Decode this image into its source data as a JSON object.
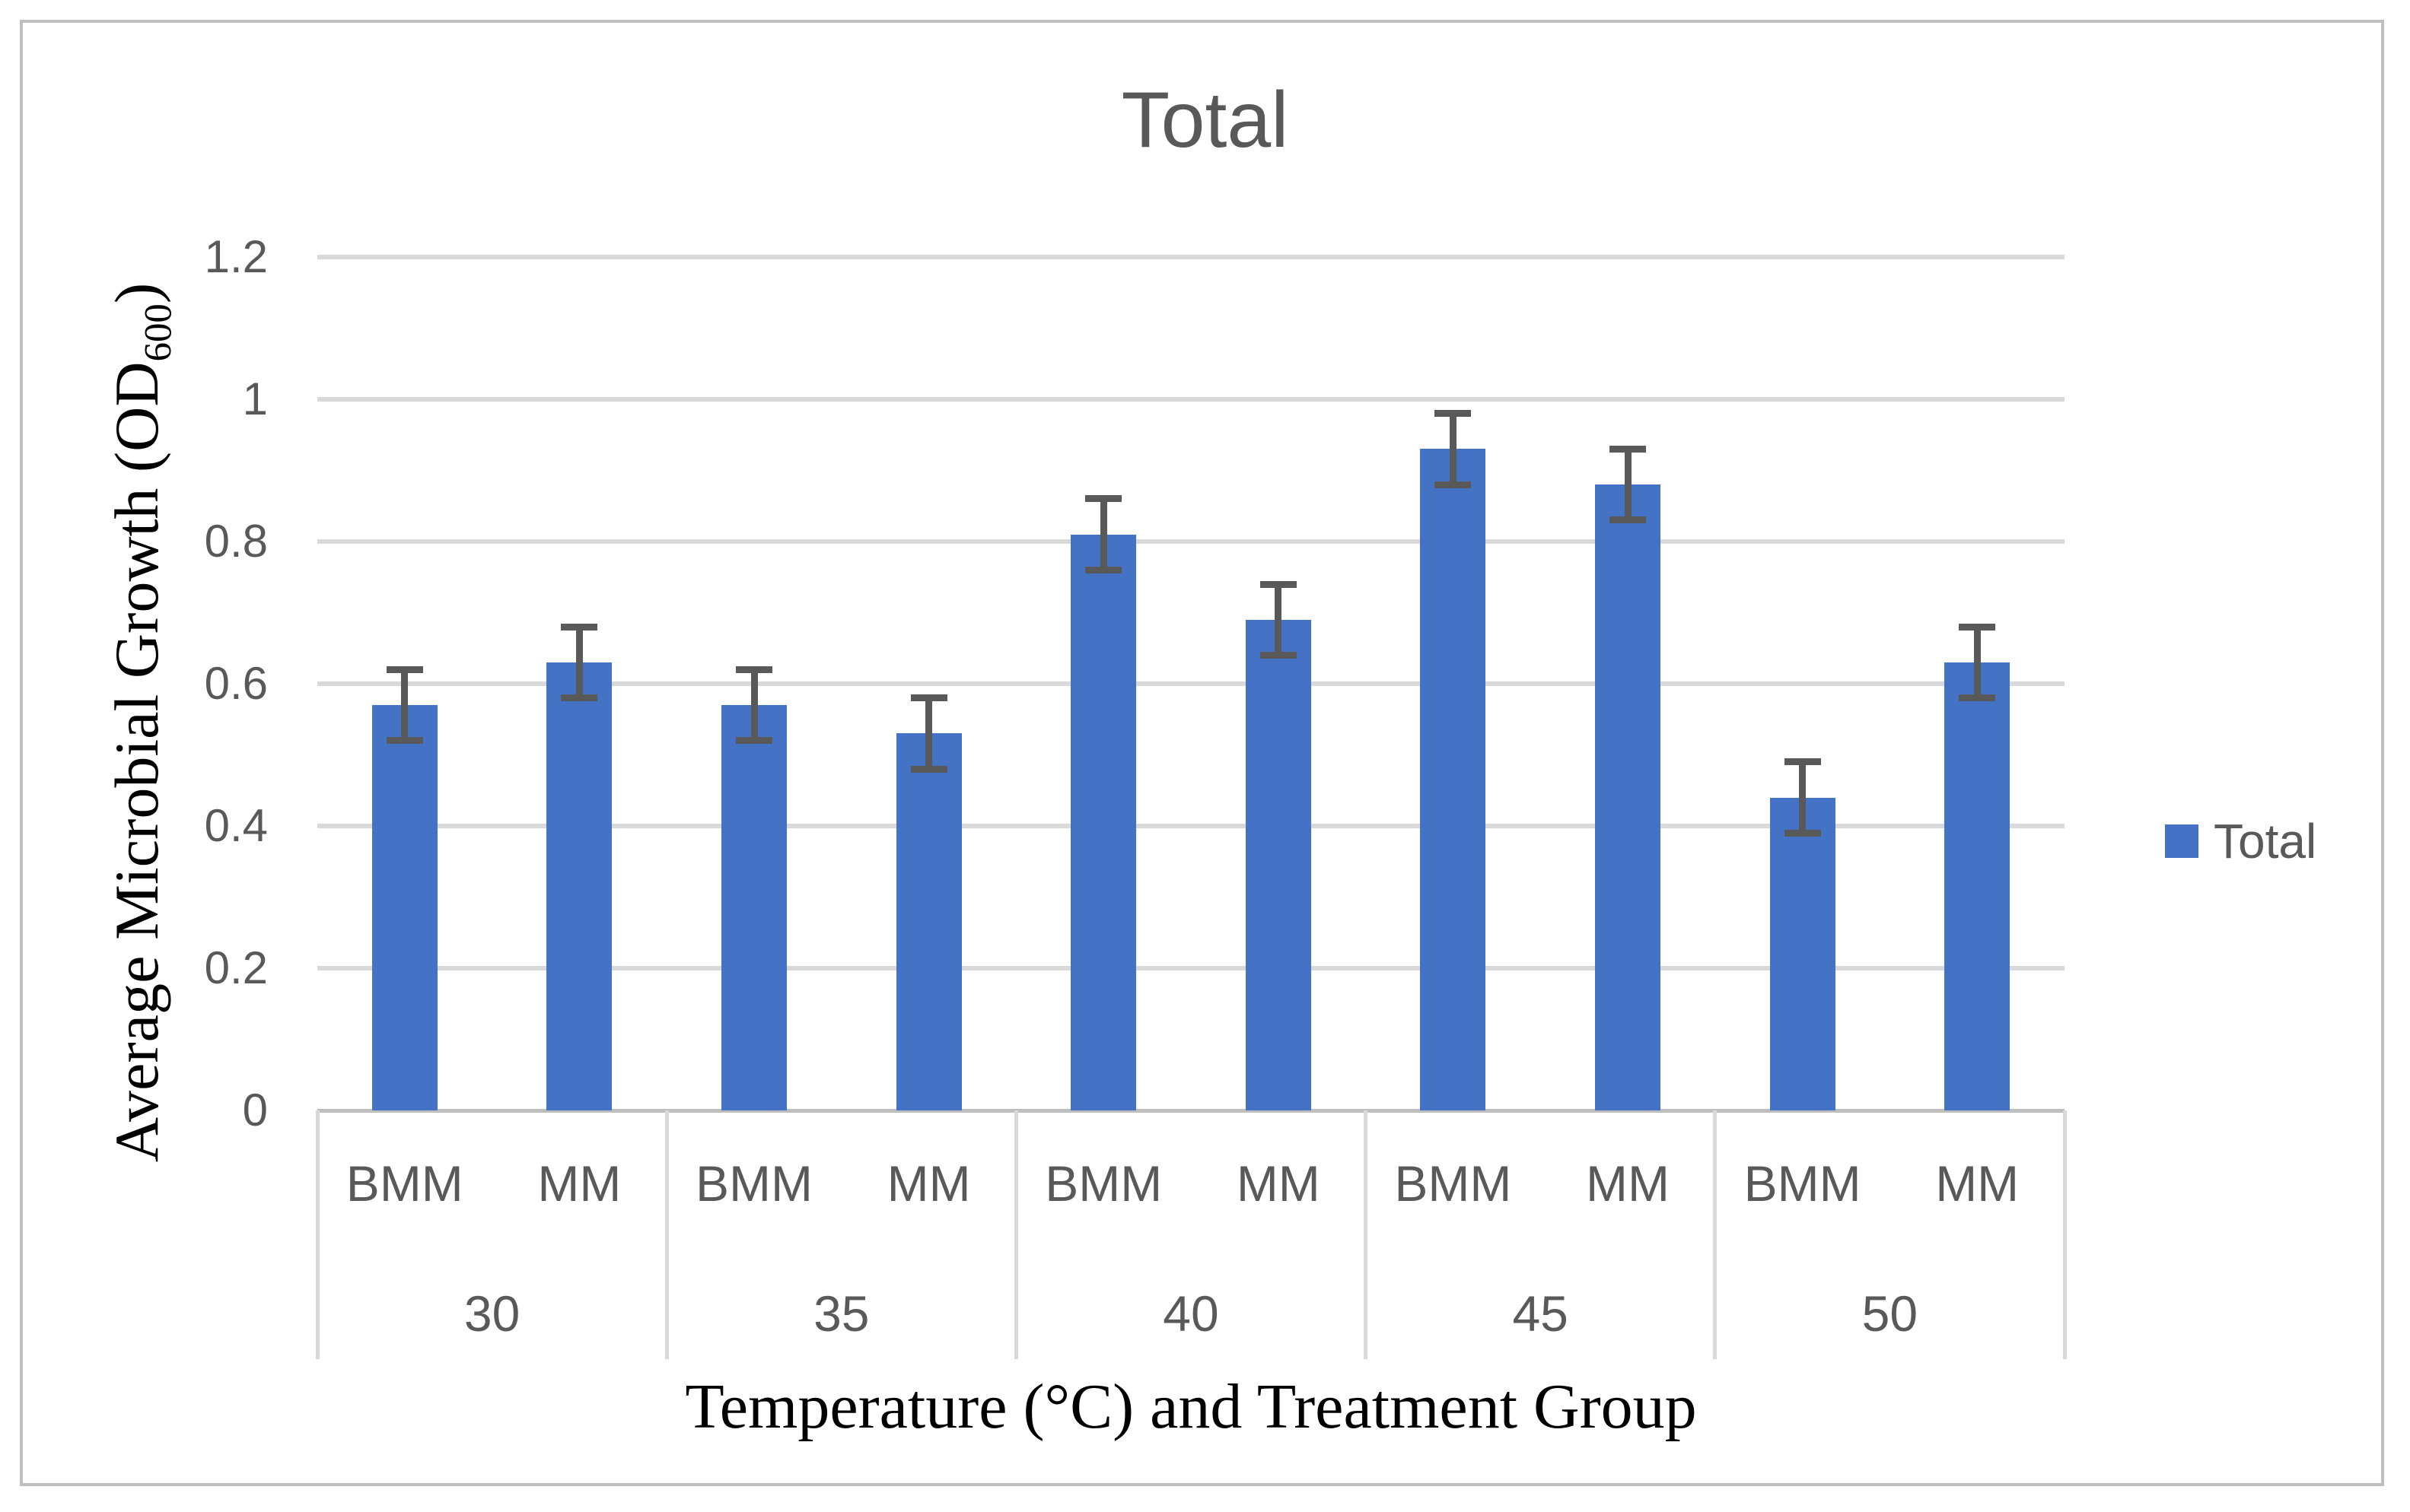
{
  "title": "Total",
  "legend": [
    {
      "label": "Total",
      "color": "#4472C4"
    }
  ],
  "y_axis": {
    "title_pre": "Average Microbial Growth (OD",
    "title_sub": "600",
    "title_post": ")",
    "ticks": [
      "1.2",
      "1",
      "0.8",
      "0.6",
      "0.4",
      "0.2",
      "0"
    ]
  },
  "x_axis": {
    "title": "Temperature (°C) and Treatment Group",
    "tier1_labels": [
      "BMM",
      "MM"
    ],
    "tier2_labels": [
      "30",
      "35",
      "40",
      "45",
      "50"
    ]
  },
  "colors": {
    "bar": "#4472C4",
    "error_bar": "#595959",
    "gridline": "#D9D9D9",
    "axis_line": "#BFBFBF",
    "text_gray": "#595959",
    "text_black": "#000000",
    "frame": "#BFBFBF"
  },
  "chart_data": {
    "type": "bar",
    "title": "Total",
    "xlabel": "Temperature (°C) and Treatment Group",
    "ylabel": "Average Microbial Growth (OD600)",
    "ylim": [
      0,
      1.2
    ],
    "ytick_interval": 0.2,
    "grid": true,
    "legend_position": "right",
    "error_bars": true,
    "categories": [
      "30",
      "35",
      "40",
      "45",
      "50"
    ],
    "groups": [
      {
        "category": "30",
        "bars": [
          {
            "label": "BMM",
            "value": 0.57,
            "error": 0.05
          },
          {
            "label": "MM",
            "value": 0.63,
            "error": 0.05
          }
        ]
      },
      {
        "category": "35",
        "bars": [
          {
            "label": "BMM",
            "value": 0.57,
            "error": 0.05
          },
          {
            "label": "MM",
            "value": 0.53,
            "error": 0.05
          }
        ]
      },
      {
        "category": "40",
        "bars": [
          {
            "label": "BMM",
            "value": 0.81,
            "error": 0.05
          },
          {
            "label": "MM",
            "value": 0.69,
            "error": 0.05
          }
        ]
      },
      {
        "category": "45",
        "bars": [
          {
            "label": "BMM",
            "value": 0.93,
            "error": 0.05
          },
          {
            "label": "MM",
            "value": 0.88,
            "error": 0.05
          }
        ]
      },
      {
        "category": "50",
        "bars": [
          {
            "label": "BMM",
            "value": 0.44,
            "error": 0.05
          },
          {
            "label": "MM",
            "value": 0.63,
            "error": 0.05
          }
        ]
      }
    ]
  }
}
